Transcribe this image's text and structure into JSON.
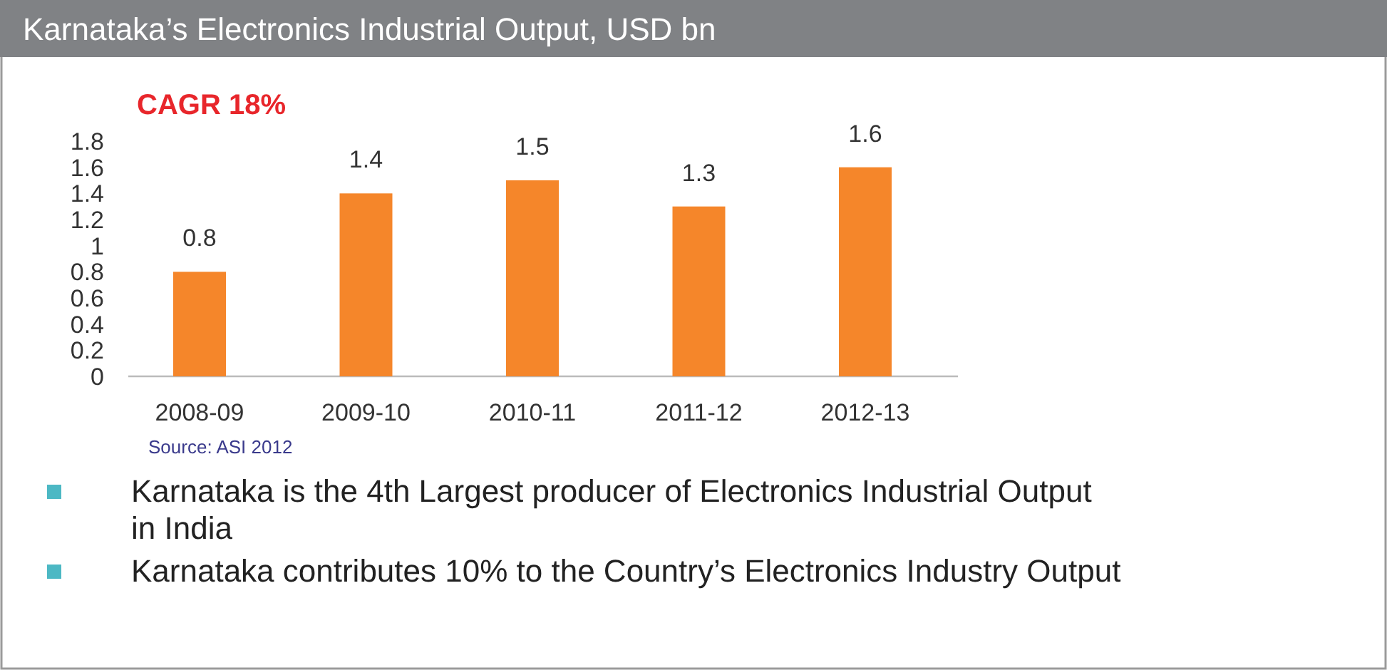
{
  "chart_data": {
    "type": "bar",
    "title": "Karnataka’s Electronics Industrial Output, USD bn",
    "categories": [
      "2008-09",
      "2009-10",
      "2010-11",
      "2011-12",
      "2012-13"
    ],
    "values": [
      0.8,
      1.4,
      1.5,
      1.3,
      1.6
    ],
    "color": "#f5862a",
    "data_labels": true,
    "ylim": [
      0,
      1.8
    ],
    "yticks": [
      0,
      {
        "value": 0.2,
        "label": "0.2"
      },
      {
        "value": 0.4,
        "label": "0.4"
      },
      {
        "value": 0.6,
        "label": "0.6"
      },
      {
        "value": 0.8,
        "label": "0.8"
      },
      1,
      {
        "value": 1.2,
        "label": "1.2"
      },
      {
        "value": 1.4,
        "label": "1.4"
      },
      {
        "value": 1.6,
        "label": "1.6"
      },
      {
        "value": 1.8,
        "label": "1.8"
      }
    ],
    "grid": false,
    "annotations": [
      "CAGR 18%",
      "Source: ASI 2012",
      "Karnataka is the 4th Largest producer of Electronics Industrial Output in India",
      "Karnataka contributes 10% to the Country’s Electronics Industry Output"
    ]
  }
}
